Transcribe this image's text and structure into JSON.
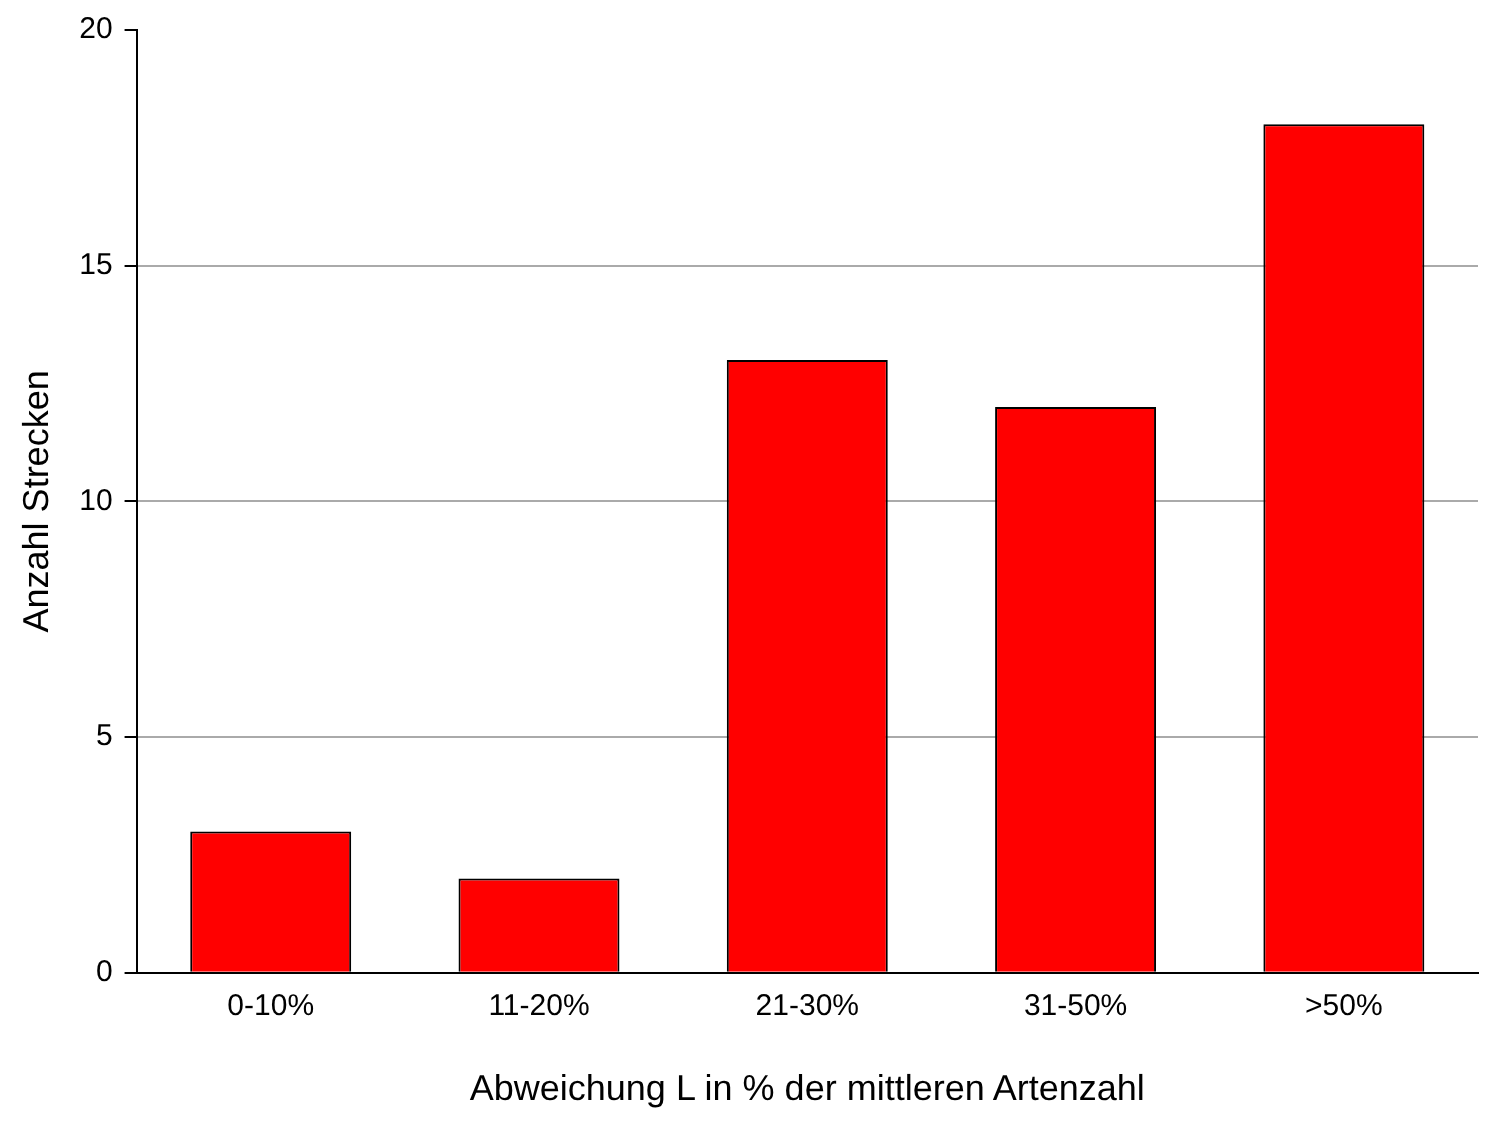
{
  "chart_data": {
    "type": "bar",
    "xlabel": "Abweichung L in % der mittleren Artenzahl",
    "ylabel": "Anzahl Strecken",
    "categories": [
      "0-10%",
      "11-20%",
      "21-30%",
      "31-50%",
      ">50%"
    ],
    "values": [
      3,
      2,
      13,
      12,
      18
    ],
    "color": "#ff0000",
    "ylim": [
      0,
      20
    ],
    "yticks": [
      0,
      5,
      10,
      15,
      20
    ],
    "grid": "y"
  }
}
